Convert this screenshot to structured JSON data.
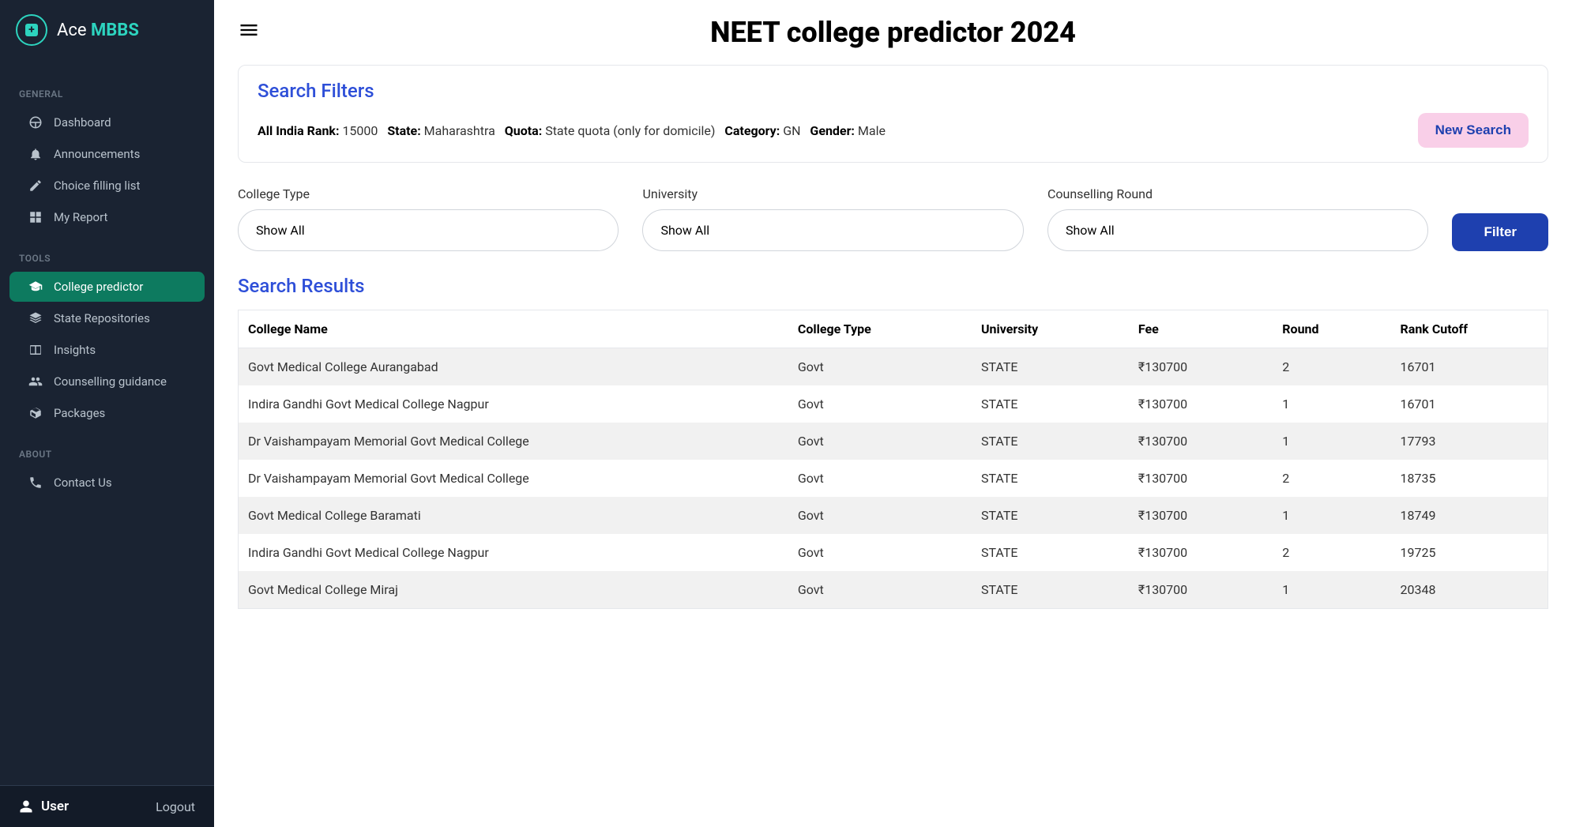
{
  "logo": {
    "prefix": "Ace ",
    "suffix": "MBBS"
  },
  "sidebar": {
    "sections": [
      {
        "title": "GENERAL",
        "items": [
          {
            "icon": "dashboard",
            "label": "Dashboard"
          },
          {
            "icon": "bell",
            "label": "Announcements"
          },
          {
            "icon": "edit",
            "label": "Choice filling list"
          },
          {
            "icon": "grid",
            "label": "My Report"
          }
        ]
      },
      {
        "title": "TOOLS",
        "items": [
          {
            "icon": "cap",
            "label": "College predictor",
            "active": true
          },
          {
            "icon": "layers",
            "label": "State Repositories"
          },
          {
            "icon": "book",
            "label": "Insights"
          },
          {
            "icon": "people",
            "label": "Counselling guidance"
          },
          {
            "icon": "box",
            "label": "Packages"
          }
        ]
      },
      {
        "title": "ABOUT",
        "items": [
          {
            "icon": "phone",
            "label": "Contact Us"
          }
        ]
      }
    ],
    "footer": {
      "user": "User",
      "logout": "Logout"
    }
  },
  "header": {
    "title": "NEET college predictor 2024"
  },
  "filters": {
    "heading": "Search Filters",
    "rank_label": "All India Rank:",
    "rank_value": "15000",
    "state_label": "State:",
    "state_value": "Maharashtra",
    "quota_label": "Quota:",
    "quota_value": "State quota (only for domicile)",
    "category_label": "Category:",
    "category_value": "GN",
    "gender_label": "Gender:",
    "gender_value": "Male",
    "new_search": "New Search"
  },
  "dropdowns": {
    "college_type": {
      "label": "College Type",
      "value": "Show All"
    },
    "university": {
      "label": "University",
      "value": "Show All"
    },
    "round": {
      "label": "Counselling Round",
      "value": "Show All"
    },
    "filter_btn": "Filter"
  },
  "results": {
    "heading": "Search Results",
    "columns": [
      "College Name",
      "College Type",
      "University",
      "Fee",
      "Round",
      "Rank Cutoff"
    ],
    "rows": [
      [
        "Govt Medical College Aurangabad",
        "Govt",
        "STATE",
        "₹130700",
        "2",
        "16701"
      ],
      [
        "Indira Gandhi Govt Medical College Nagpur",
        "Govt",
        "STATE",
        "₹130700",
        "1",
        "16701"
      ],
      [
        "Dr Vaishampayam Memorial Govt Medical College",
        "Govt",
        "STATE",
        "₹130700",
        "1",
        "17793"
      ],
      [
        "Dr Vaishampayam Memorial Govt Medical College",
        "Govt",
        "STATE",
        "₹130700",
        "2",
        "18735"
      ],
      [
        "Govt Medical College Baramati",
        "Govt",
        "STATE",
        "₹130700",
        "1",
        "18749"
      ],
      [
        "Indira Gandhi Govt Medical College Nagpur",
        "Govt",
        "STATE",
        "₹130700",
        "2",
        "19725"
      ],
      [
        "Govt Medical College Miraj",
        "Govt",
        "STATE",
        "₹130700",
        "1",
        "20348"
      ]
    ],
    "col_widths": [
      "42%",
      "14%",
      "12%",
      "11%",
      "9%",
      "12%"
    ]
  },
  "colors": {
    "sidebar_bg": "#1a2332",
    "accent": "#2dd4bf",
    "nav_active": "#0d7a5f",
    "link_blue": "#2e4fd8",
    "btn_blue": "#1e40af",
    "pink_btn": "#f9cfe8"
  }
}
